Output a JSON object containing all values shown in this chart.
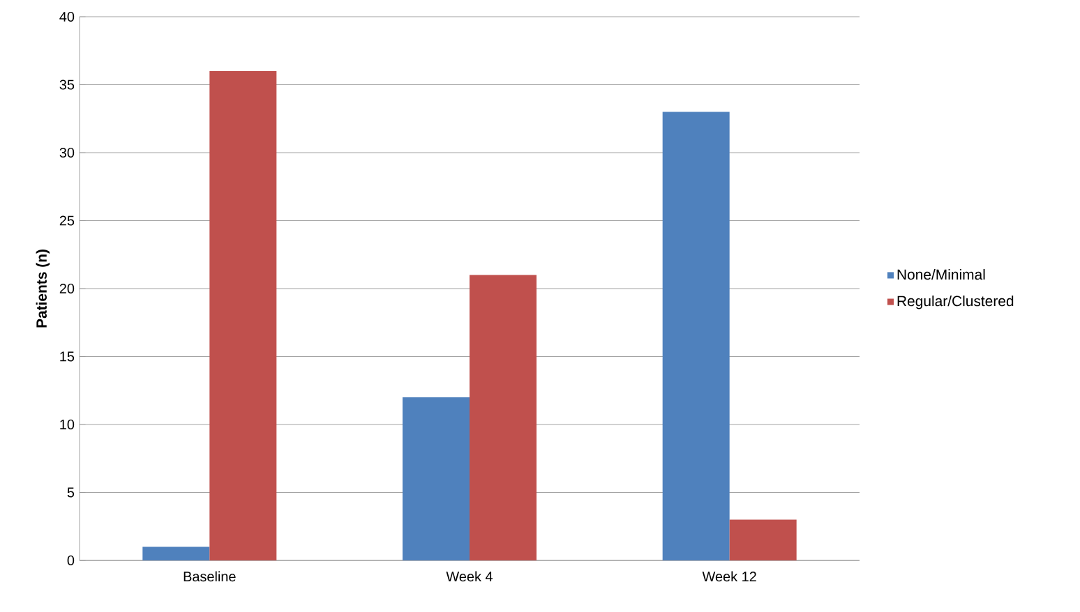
{
  "chart_data": {
    "type": "bar",
    "ylabel": "Patients (n)",
    "categories": [
      "Baseline",
      "Week 4",
      "Week 12"
    ],
    "series": [
      {
        "name": "None/Minimal",
        "color": "#4f81bd",
        "values": [
          1,
          12,
          33
        ]
      },
      {
        "name": "Regular/Clustered",
        "color": "#c0504d",
        "values": [
          36,
          21,
          3
        ]
      }
    ],
    "ylim": [
      0,
      40
    ],
    "yticks": [
      0,
      5,
      10,
      15,
      20,
      25,
      30,
      35,
      40
    ],
    "grid": "y",
    "legend": "right"
  }
}
